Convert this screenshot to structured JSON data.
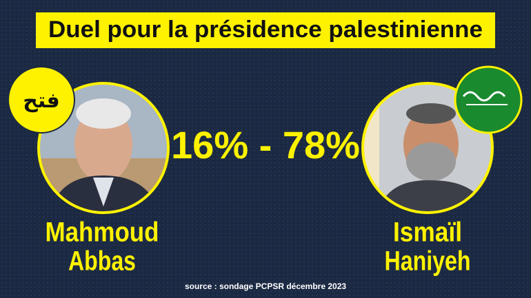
{
  "title": "Duel pour la présidence palestinienne",
  "score": "16% - 78%",
  "candidates": [
    {
      "first_name": "Mahmoud",
      "last_name": "Abbas",
      "logo_text": "فتح"
    },
    {
      "first_name": "Ismaïl",
      "last_name": "Haniyeh"
    }
  ],
  "source": "source : sondage PCPSR décembre 2023"
}
